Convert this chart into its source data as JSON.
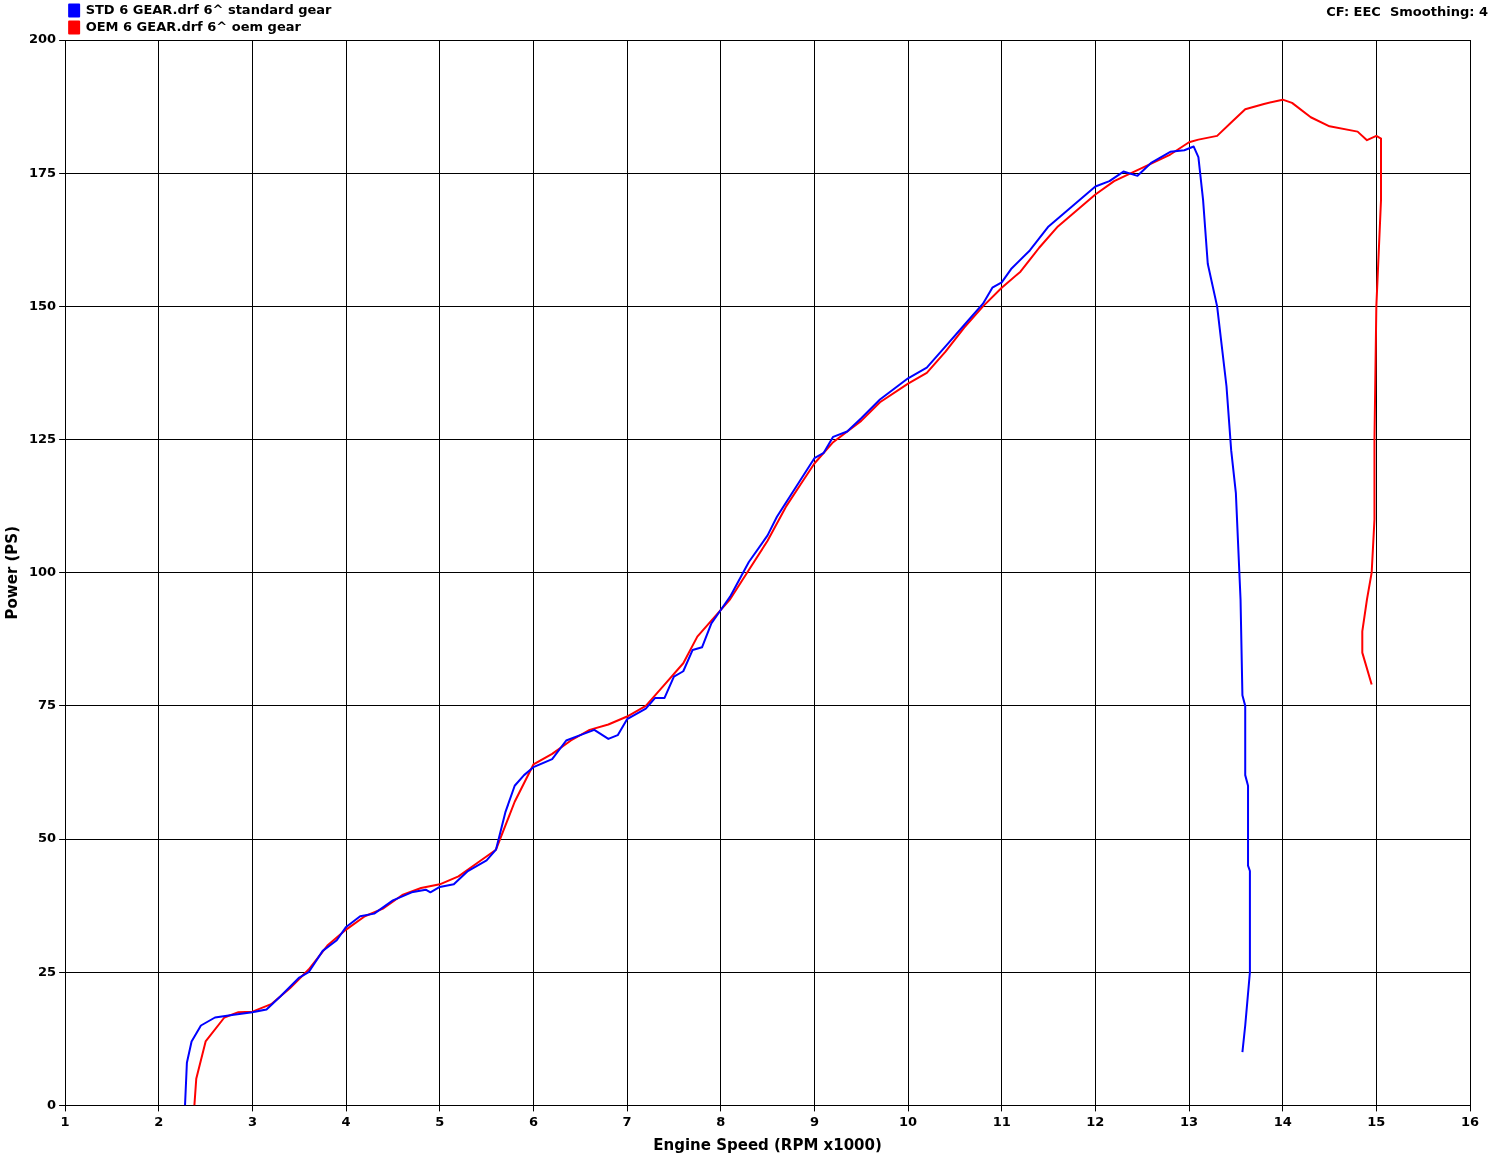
{
  "chart_data": {
    "type": "line",
    "xlabel": "Engine Speed (RPM x1000)",
    "ylabel": "Power (PS)",
    "annotations": [
      "CF: EEC  Smoothing: 4"
    ],
    "xlim": [
      1,
      16
    ],
    "xticks": [
      1,
      2,
      3,
      4,
      5,
      6,
      7,
      8,
      9,
      10,
      11,
      12,
      13,
      14,
      15,
      16
    ],
    "ylim": [
      0,
      200
    ],
    "yticks": [
      0,
      25,
      50,
      75,
      100,
      125,
      150,
      175,
      200
    ],
    "grid": true,
    "legend": "top left",
    "marker": "none",
    "line_style": "solid",
    "series": [
      {
        "name": "STD 6 GEAR.drf 6^ standard gear",
        "color": "#0000ff",
        "x": [
          2.28,
          2.3,
          2.35,
          2.45,
          2.6,
          2.8,
          3.0,
          3.15,
          3.3,
          3.5,
          3.6,
          3.75,
          3.9,
          4.0,
          4.15,
          4.3,
          4.5,
          4.7,
          4.85,
          4.9,
          5.0,
          5.15,
          5.3,
          5.5,
          5.6,
          5.7,
          5.8,
          5.9,
          6.0,
          6.2,
          6.35,
          6.5,
          6.65,
          6.8,
          6.9,
          7.0,
          7.2,
          7.3,
          7.4,
          7.5,
          7.6,
          7.7,
          7.8,
          7.9,
          8.0,
          8.1,
          8.3,
          8.5,
          8.6,
          8.8,
          9.0,
          9.1,
          9.2,
          9.35,
          9.5,
          9.7,
          10.0,
          10.2,
          10.4,
          10.6,
          10.8,
          10.9,
          11.0,
          11.1,
          11.3,
          11.5,
          11.7,
          11.9,
          12.0,
          12.15,
          12.3,
          12.45,
          12.6,
          12.8,
          12.95,
          13.05,
          13.1,
          13.15,
          13.2,
          13.3,
          13.4,
          13.45,
          13.5,
          13.55,
          13.57,
          13.6,
          13.6,
          13.63,
          13.63,
          13.65,
          13.65,
          13.6,
          13.57
        ],
        "values": [
          0,
          8,
          12,
          15,
          16.5,
          17,
          17.5,
          18,
          20.5,
          24,
          25,
          29,
          31,
          33.5,
          35.5,
          36,
          38.5,
          40,
          40.5,
          40,
          41,
          41.5,
          44,
          46,
          48,
          55,
          60,
          62,
          63.5,
          65,
          68.5,
          69.5,
          70.5,
          68.8,
          69.5,
          72.5,
          74.5,
          76.5,
          76.5,
          80.5,
          81.5,
          85.5,
          86,
          90.5,
          93,
          95.5,
          102,
          107,
          110.5,
          116,
          121.5,
          122.5,
          125.5,
          126.5,
          129,
          132.5,
          136.5,
          138.5,
          142.5,
          146.5,
          150.5,
          153.5,
          154.5,
          157,
          160.5,
          165,
          168,
          171,
          172.5,
          173.5,
          175.3,
          174.5,
          177,
          179,
          179.3,
          180,
          178,
          170,
          158,
          150,
          135,
          123,
          115,
          95,
          77,
          75,
          62,
          60,
          45,
          44,
          25,
          15,
          10
        ]
      },
      {
        "name": "OEM 6 GEAR.drf 6^ oem gear",
        "color": "#ff0000",
        "x": [
          2.38,
          2.4,
          2.5,
          2.7,
          2.85,
          3.0,
          3.2,
          3.4,
          3.6,
          3.8,
          4.0,
          4.2,
          4.4,
          4.6,
          4.8,
          5.0,
          5.2,
          5.4,
          5.6,
          5.8,
          6.0,
          6.2,
          6.4,
          6.6,
          6.8,
          7.0,
          7.2,
          7.4,
          7.6,
          7.75,
          7.9,
          8.1,
          8.3,
          8.5,
          8.7,
          8.85,
          9.0,
          9.2,
          9.5,
          9.7,
          10.0,
          10.2,
          10.4,
          10.6,
          10.8,
          11.0,
          11.2,
          11.4,
          11.6,
          11.8,
          12.0,
          12.2,
          12.5,
          12.8,
          13.0,
          13.1,
          13.3,
          13.45,
          13.6,
          13.8,
          14.0,
          14.1,
          14.3,
          14.5,
          14.8,
          14.9,
          15.0,
          15.05,
          15.05,
          15.0,
          14.98,
          14.98,
          14.95,
          14.9,
          14.85,
          14.85,
          14.95
        ],
        "values": [
          0,
          5,
          12,
          16.5,
          17.5,
          17.6,
          19,
          22,
          25.5,
          30,
          33,
          35.5,
          37,
          39.5,
          40.8,
          41.5,
          43,
          45.5,
          48,
          57,
          64,
          66,
          68.5,
          70.5,
          71.5,
          73,
          75,
          79,
          83,
          88,
          91,
          95,
          100.5,
          106,
          112.5,
          116.5,
          120.5,
          124.5,
          128.5,
          132,
          135.5,
          137.5,
          141.5,
          146,
          150,
          153.5,
          156.5,
          161,
          165,
          168,
          171,
          173.5,
          176,
          178.5,
          180.8,
          181.3,
          182,
          184.5,
          187,
          188,
          188.8,
          188.2,
          185.5,
          183.8,
          182.8,
          181.2,
          182,
          181.5,
          170,
          150,
          125,
          110,
          100,
          95,
          89,
          85,
          79
        ]
      }
    ]
  }
}
